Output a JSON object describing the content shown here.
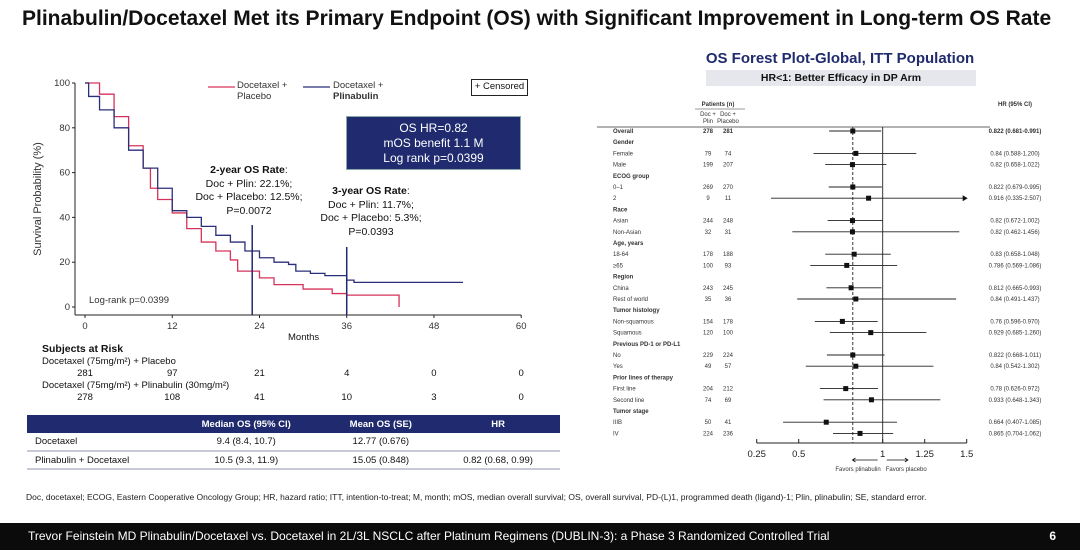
{
  "title": "Plinabulin/Docetaxel Met its Primary Endpoint (OS) with Significant Improvement in Long-term OS Rate",
  "chart_data": [
    {
      "type": "line",
      "ylabel": "Survival Probability (%)",
      "xlabel": "Months",
      "xlim": [
        0,
        60
      ],
      "ylim": [
        0,
        100
      ],
      "xticks": [
        0,
        12,
        24,
        36,
        48,
        60
      ],
      "yticks": [
        0,
        20,
        40,
        60,
        80,
        100
      ],
      "legend": {
        "placement": "top",
        "entries": [
          {
            "line1": "Docetaxel +",
            "line2": "Placebo"
          },
          {
            "line1": "Docetaxel +",
            "line2": "Plinabulin"
          }
        ],
        "censored": "+ Censored"
      },
      "series": [
        {
          "name": "Docetaxel + Placebo",
          "color": "#d6335a",
          "x": [
            0,
            2,
            4,
            6,
            8,
            9,
            10,
            12,
            14,
            16,
            18,
            20,
            21,
            24,
            26,
            30,
            34,
            36,
            43,
            43.2
          ],
          "y": [
            100,
            95,
            85,
            72,
            62,
            53,
            48,
            42,
            35,
            29,
            25,
            21,
            16,
            13,
            10,
            8,
            6,
            5.3,
            5.3,
            0
          ]
        },
        {
          "name": "Docetaxel + Plinabulin",
          "color": "#2b2f7a",
          "x": [
            0,
            0.5,
            2,
            4,
            6,
            8,
            10,
            12,
            14,
            16,
            18,
            20,
            22,
            24,
            26,
            28,
            29,
            31,
            33,
            35,
            36,
            37,
            52
          ],
          "y": [
            100,
            94,
            88,
            80,
            70,
            62,
            53,
            43,
            40,
            36,
            32,
            29,
            25,
            22,
            20,
            19,
            16,
            15,
            14,
            14,
            12,
            11,
            11
          ]
        }
      ],
      "reference_lines": [
        {
          "x": 23
        },
        {
          "x": 36
        }
      ],
      "info_box": [
        "OS HR=0.82",
        "mOS benefit 1.1 M",
        "Log rank p=0.0399"
      ],
      "annotations": {
        "two_year": {
          "title": "2-year OS Rate",
          "lines": [
            "Doc + Plin: 22.1%;",
            "Doc + Placebo: 12.5%;",
            "P=0.0072"
          ]
        },
        "three_year": {
          "title": "3-year OS Rate",
          "lines": [
            "Doc + Plin: 11.7%;",
            "Doc + Placebo: 5.3%;",
            "P=0.0393"
          ]
        },
        "logrank": "Log-rank p=0.0399"
      }
    },
    {
      "type": "forest",
      "title": "OS Forest Plot-Global, ITT Population",
      "subtitle": "HR<1: Better Efficacy in DP Arm",
      "header": {
        "patients": "Patients (n)",
        "col1a": "Doc +",
        "col1b": "Plin",
        "col2a": "Doc +",
        "col2b": "Placebo",
        "hr": "HR (95% CI)"
      },
      "xlim": [
        0.25,
        1.5
      ],
      "xticks": [
        "0.25",
        "0.5",
        "1",
        "1.25",
        "1.5"
      ],
      "reference": 1,
      "overall_line": 0.822,
      "favors_left": "Favors plinabulin",
      "favors_right": "Favors placebo",
      "rows": [
        {
          "label": "Overall",
          "bold": true,
          "n1": "278",
          "n2": "281",
          "hr": 0.822,
          "lo": 0.681,
          "hi": 0.991,
          "text": "0.822 (0.681-0.991)"
        },
        {
          "label": "Gender",
          "bold": true
        },
        {
          "label": "Female",
          "n1": "79",
          "n2": "74",
          "hr": 0.84,
          "lo": 0.588,
          "hi": 1.2,
          "text": "0.84 (0.588-1.200)"
        },
        {
          "label": "Male",
          "n1": "199",
          "n2": "207",
          "hr": 0.82,
          "lo": 0.658,
          "hi": 1.022,
          "text": "0.82 (0.658-1.022)"
        },
        {
          "label": "ECOG group",
          "bold": true
        },
        {
          "label": "0–1",
          "n1": "269",
          "n2": "270",
          "hr": 0.822,
          "lo": 0.679,
          "hi": 0.995,
          "text": "0.822 (0.679-0.995)"
        },
        {
          "label": "2",
          "n1": "9",
          "n2": "11",
          "hr": 0.916,
          "lo": 0.335,
          "hi": 2.507,
          "text": "0.916 (0.335-2.507)"
        },
        {
          "label": "Race",
          "bold": true
        },
        {
          "label": "Asian",
          "n1": "244",
          "n2": "248",
          "hr": 0.82,
          "lo": 0.672,
          "hi": 1.002,
          "text": "0.82 (0.672-1.002)"
        },
        {
          "label": "Non-Asian",
          "n1": "32",
          "n2": "31",
          "hr": 0.82,
          "lo": 0.462,
          "hi": 1.456,
          "text": "0.82 (0.462-1.456)"
        },
        {
          "label": "Age, years",
          "bold": true
        },
        {
          "label": "18-64",
          "n1": "178",
          "n2": "188",
          "hr": 0.83,
          "lo": 0.658,
          "hi": 1.048,
          "text": "0.83 (0.658-1.048)"
        },
        {
          "label": "≥65",
          "n1": "100",
          "n2": "93",
          "hr": 0.786,
          "lo": 0.569,
          "hi": 1.086,
          "text": "0.786 (0.569-1.086)"
        },
        {
          "label": "Region",
          "bold": true
        },
        {
          "label": "China",
          "n1": "243",
          "n2": "245",
          "hr": 0.812,
          "lo": 0.665,
          "hi": 0.993,
          "text": "0.812 (0.665-0.993)"
        },
        {
          "label": "Rest of world",
          "n1": "35",
          "n2": "36",
          "hr": 0.84,
          "lo": 0.491,
          "hi": 1.437,
          "text": "0.84 (0.491-1.437)"
        },
        {
          "label": "Tumor histology",
          "bold": true
        },
        {
          "label": "Non-squamous",
          "n1": "154",
          "n2": "178",
          "hr": 0.76,
          "lo": 0.596,
          "hi": 0.97,
          "text": "0.76 (0.596-0.970)"
        },
        {
          "label": "Squamous",
          "n1": "120",
          "n2": "100",
          "hr": 0.929,
          "lo": 0.685,
          "hi": 1.26,
          "text": "0.929 (0.685-1.260)"
        },
        {
          "label": "Previous PD-1 or PD-L1",
          "bold": true
        },
        {
          "label": "No",
          "n1": "229",
          "n2": "224",
          "hr": 0.822,
          "lo": 0.668,
          "hi": 1.011,
          "text": "0.822 (0.668-1.011)"
        },
        {
          "label": "Yes",
          "n1": "49",
          "n2": "57",
          "hr": 0.84,
          "lo": 0.542,
          "hi": 1.302,
          "text": "0.84 (0.542-1.302)"
        },
        {
          "label": "Prior lines of therapy",
          "bold": true
        },
        {
          "label": "First line",
          "n1": "204",
          "n2": "212",
          "hr": 0.78,
          "lo": 0.626,
          "hi": 0.972,
          "text": "0.78 (0.626-0.972)"
        },
        {
          "label": "Second line",
          "n1": "74",
          "n2": "69",
          "hr": 0.933,
          "lo": 0.648,
          "hi": 1.343,
          "text": "0.933 (0.648-1.343)"
        },
        {
          "label": "Tumor stage",
          "bold": true
        },
        {
          "label": "IIIB",
          "n1": "50",
          "n2": "41",
          "hr": 0.664,
          "lo": 0.407,
          "hi": 1.085,
          "text": "0.664 (0.407-1.085)"
        },
        {
          "label": "IV",
          "n1": "224",
          "n2": "236",
          "hr": 0.865,
          "lo": 0.704,
          "hi": 1.062,
          "text": "0.865 (0.704-1.062)"
        }
      ]
    }
  ],
  "risk": {
    "title": "Subjects at Risk",
    "placebo_label": "Docetaxel (75mg/m²) + Placebo",
    "placebo": [
      "281",
      "97",
      "21",
      "4",
      "0",
      "0"
    ],
    "plin_label": "Docetaxel (75mg/m²) + Plinabulin (30mg/m²)",
    "plin": [
      "278",
      "108",
      "41",
      "10",
      "3",
      "0"
    ]
  },
  "summary_table": {
    "headers": [
      "",
      "Median OS (95% CI)",
      "Mean OS (SE)",
      "HR"
    ],
    "rows": [
      [
        "Docetaxel",
        "9.4 (8.4, 10.7)",
        "12.77 (0.676)",
        ""
      ],
      [
        "Plinabulin + Docetaxel",
        "10.5 (9.3, 11.9)",
        "15.05 (0.848)",
        "0.82 (0.68, 0.99)"
      ]
    ]
  },
  "footnote": "Doc, docetaxel; ECOG, Eastern Cooperative Oncology Group; HR, hazard ratio; ITT, intention-to-treat; M, month; mOS, median overall survival; OS, overall survival, PD-(L)1, programmed death (ligand)-1; Plin, plinabulin; SE, standard error.",
  "footer": {
    "text": "Trevor Feinstein MD   Plinabulin/Docetaxel vs. Docetaxel in 2L/3L NSCLC after Platinum Regimens (DUBLIN-3): a Phase 3 Randomized Controlled Trial",
    "page": "6"
  },
  "colors": {
    "navy": "#1f2b6e",
    "placebo": "#d6335a",
    "plinabulin": "#2b2f7a"
  }
}
